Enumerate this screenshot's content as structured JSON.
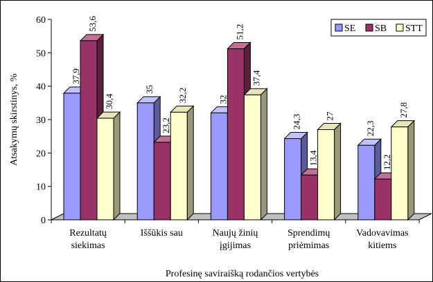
{
  "chart_data": {
    "type": "bar",
    "title": "",
    "xlabel": "Profesinę saviraišką rodančios vertybės",
    "ylabel": "Atsakymų skirstinys, %",
    "ylim": [
      0,
      60
    ],
    "yticks": [
      0,
      10,
      20,
      30,
      40,
      50,
      60
    ],
    "categories": [
      [
        "Rezultatų",
        "siekimas"
      ],
      [
        "Iššūkis sau"
      ],
      [
        "Naujų žinių",
        "įgijimas"
      ],
      [
        "Sprendimų",
        "priėmimas"
      ],
      [
        "Vadovavimas",
        "kitiems"
      ]
    ],
    "series": [
      {
        "name": "SE",
        "color": "#9999ff",
        "side": "#5c5c99",
        "top": "#c2c2ff",
        "values": [
          37.9,
          35,
          32,
          24.3,
          22.3
        ],
        "labels": [
          "37,9",
          "35",
          "32",
          "24,3",
          "22,3"
        ]
      },
      {
        "name": "SB",
        "color": "#993366",
        "side": "#5c1f3d",
        "top": "#c27094",
        "values": [
          53.6,
          23.2,
          51.2,
          13.4,
          12.2
        ],
        "labels": [
          "53,6",
          "23,2",
          "51,2",
          "13,4",
          "12,2"
        ]
      },
      {
        "name": "STT",
        "color": "#ffffcc",
        "side": "#99997a",
        "top": "#e6e6b8",
        "values": [
          30.4,
          32.2,
          37.4,
          27,
          27.8
        ],
        "labels": [
          "30,4",
          "32,2",
          "37,4",
          "27",
          "27,8"
        ]
      }
    ],
    "legend": "top-right",
    "grid": false,
    "style": "3d-clustered-column"
  }
}
